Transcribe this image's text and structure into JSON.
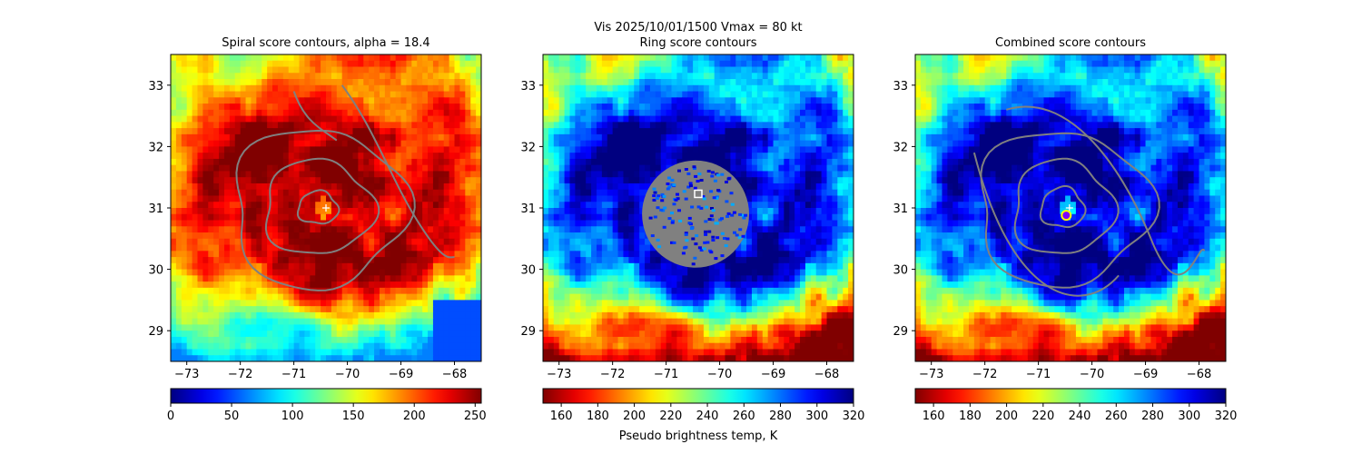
{
  "chart_data": {
    "suptitle": "Vis  2025/10/01/1500    Vmax = 80 kt",
    "colorbar_label": "Pseudo brightness temp, K",
    "x_ticks": [
      -73,
      -72,
      -71,
      -70,
      -69,
      -68
    ],
    "x_tick_labels": [
      "−73",
      "−72",
      "−71",
      "−70",
      "−69",
      "−68"
    ],
    "y_ticks": [
      29,
      30,
      31,
      32,
      33
    ],
    "y_tick_labels": [
      "29",
      "30",
      "31",
      "32",
      "33"
    ],
    "xlim": [
      -73.3,
      -67.5
    ],
    "ylim": [
      28.5,
      33.5
    ],
    "colormap": "jet",
    "panels": [
      {
        "type": "heatmap",
        "title": "Spiral score contours, alpha = 18.4",
        "colormap_reversed": false,
        "colorbar_range": [
          0,
          255
        ],
        "colorbar_ticks": [
          "0",
          "50",
          "100",
          "150",
          "200",
          "250"
        ],
        "center_marker": {
          "symbol": "+",
          "lon": -70.4,
          "lat": 31.0,
          "color": "#ffffff"
        },
        "contour_color": "#808080"
      },
      {
        "type": "heatmap",
        "title": "Ring score contours",
        "colormap_reversed": true,
        "colorbar_range": [
          150,
          320
        ],
        "colorbar_ticks": [
          "160",
          "180",
          "200",
          "220",
          "240",
          "260",
          "280",
          "300",
          "320"
        ],
        "masked_region": {
          "center_lon": -70.45,
          "center_lat": 30.9,
          "radius_deg": 1.0,
          "color": "#808080"
        },
        "center_marker": {
          "symbol": "square",
          "lon": -70.4,
          "lat": 31.23,
          "color": "#ffffff"
        }
      },
      {
        "type": "heatmap",
        "title": "Combined score contours",
        "colormap_reversed": true,
        "colorbar_range": [
          150,
          320
        ],
        "colorbar_ticks": [
          "160",
          "180",
          "200",
          "220",
          "240",
          "260",
          "280",
          "300",
          "320"
        ],
        "center_marker": {
          "symbol": "+",
          "lon": -70.42,
          "lat": 31.0,
          "color": "#ffffff"
        },
        "best_center": {
          "symbol": "circle",
          "lon": -70.48,
          "lat": 30.88,
          "edge_color": "#ffff00",
          "face_color": "#7a00ff"
        },
        "contour_color": "#808080"
      }
    ]
  }
}
